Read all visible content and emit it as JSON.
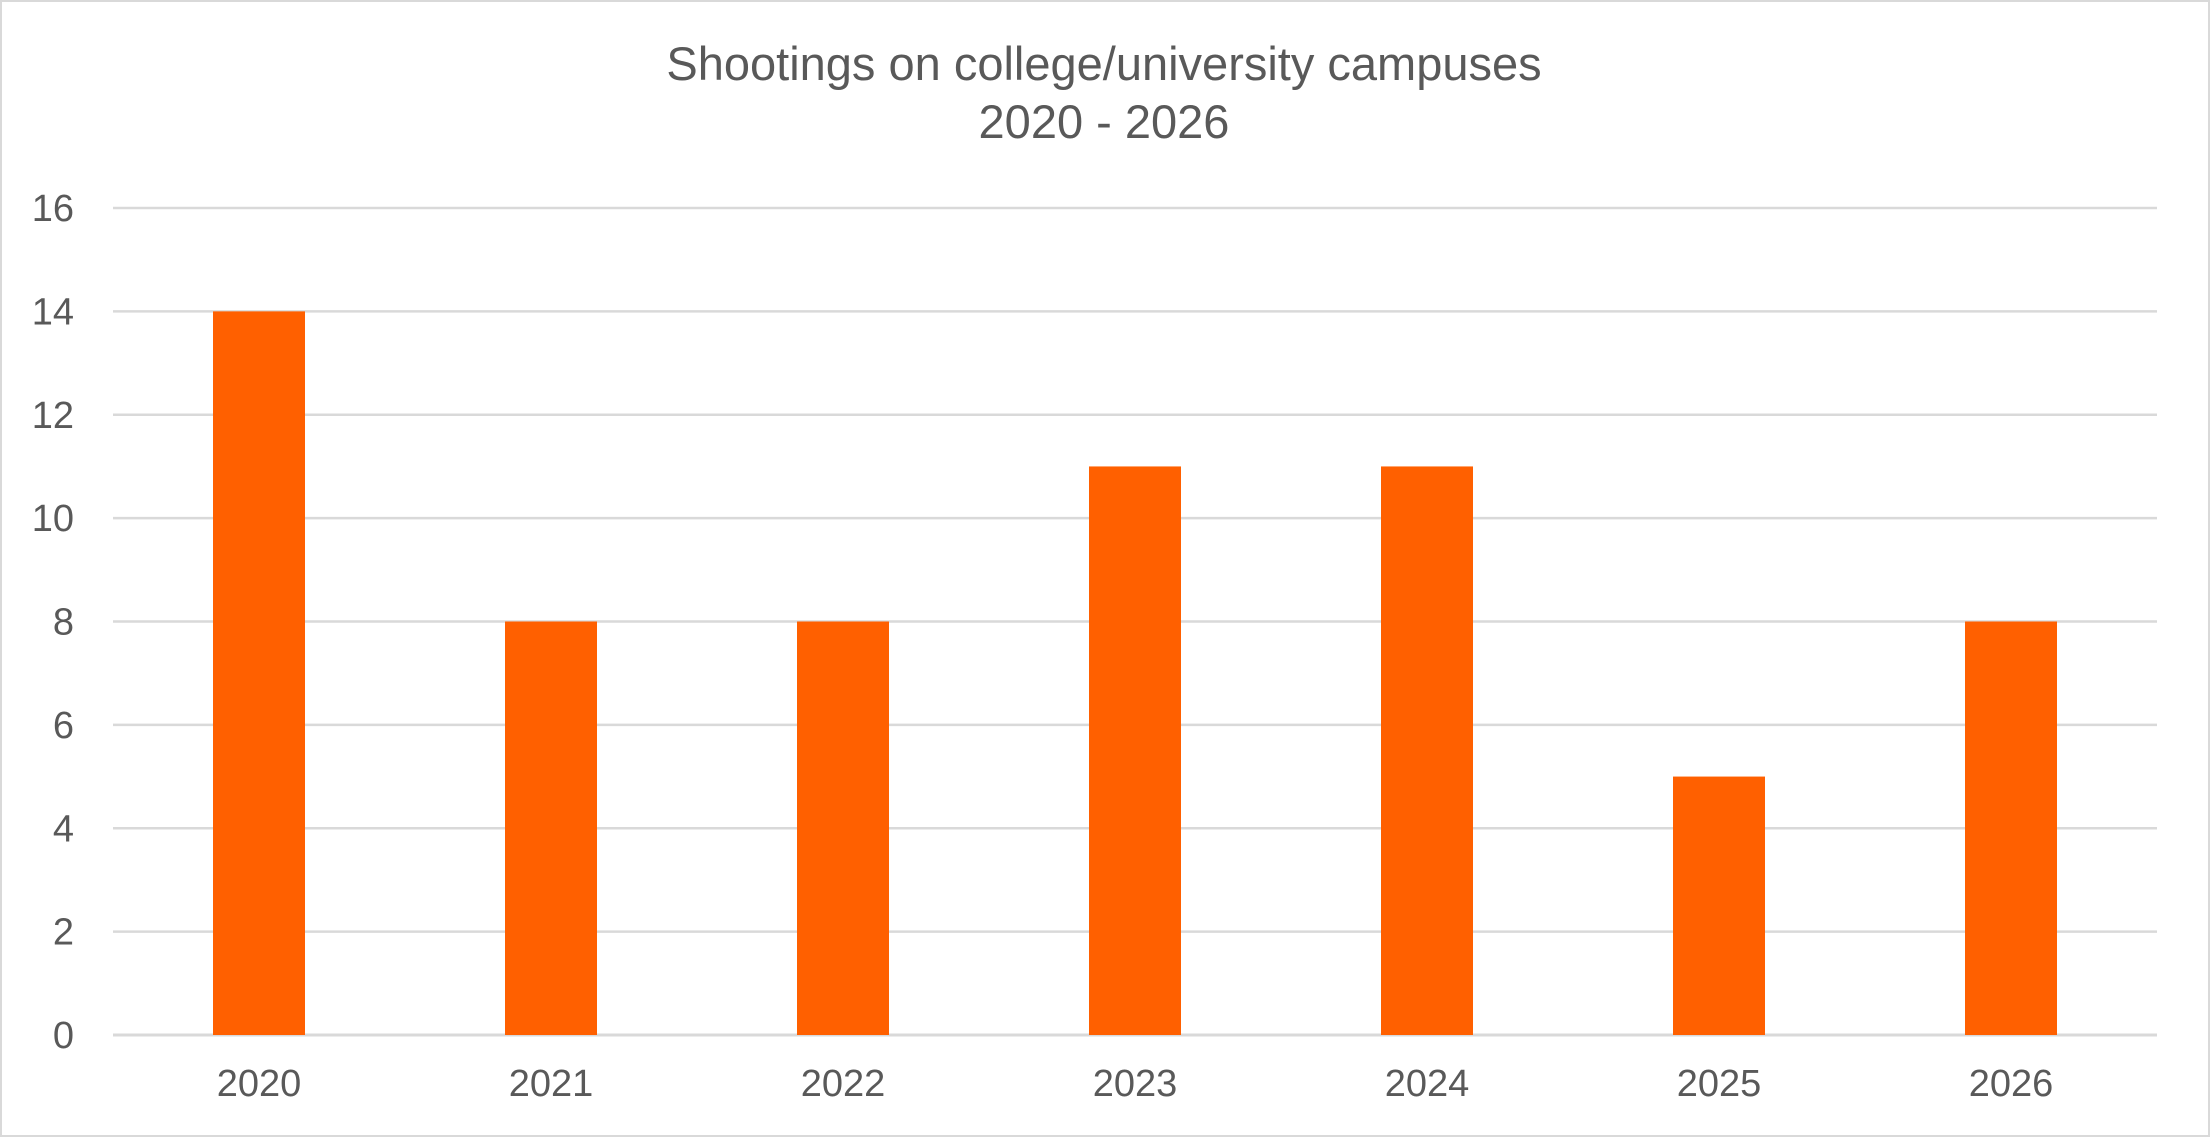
{
  "chart_data": {
    "type": "bar",
    "title": [
      "Shootings on college/university campuses",
      "2020 - 2026"
    ],
    "categories": [
      "2020",
      "2021",
      "2022",
      "2023",
      "2024",
      "2025",
      "2026"
    ],
    "values": [
      14,
      8,
      8,
      11,
      11,
      5,
      8
    ],
    "ylim": [
      0,
      16
    ],
    "yticks": [
      "0",
      "2",
      "4",
      "6",
      "8",
      "10",
      "12",
      "14",
      "16"
    ],
    "grid": true,
    "legend": "none",
    "bar_color": "#ff6000"
  }
}
